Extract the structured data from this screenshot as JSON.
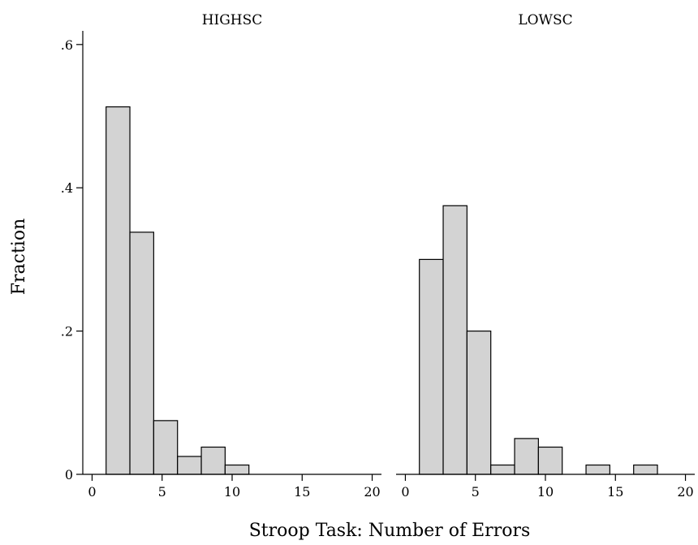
{
  "chart_data": {
    "type": "bar",
    "xlabel": "Stroop Task: Number of Errors",
    "ylabel": "Fraction",
    "bin_width": 1.7,
    "xlim": [
      -0.2,
      20.2
    ],
    "ylim": [
      0,
      0.61
    ],
    "x_ticks": [
      0,
      5,
      10,
      15,
      20
    ],
    "y_ticks": [
      {
        "value": 0,
        "label": "0"
      },
      {
        "value": 0.2,
        "label": ".2"
      },
      {
        "value": 0.4,
        "label": ".4"
      },
      {
        "value": 0.6,
        "label": ".6"
      }
    ],
    "bar_color": "#d3d3d3",
    "edge_color": "#000000",
    "panels": [
      {
        "title": "HIGHSC",
        "bars": [
          {
            "x_start": 1.0,
            "value": 0.513
          },
          {
            "x_start": 2.7,
            "value": 0.338
          },
          {
            "x_start": 4.4,
            "value": 0.075
          },
          {
            "x_start": 6.1,
            "value": 0.025
          },
          {
            "x_start": 7.8,
            "value": 0.038
          },
          {
            "x_start": 9.5,
            "value": 0.013
          }
        ]
      },
      {
        "title": "LOWSC",
        "bars": [
          {
            "x_start": 1.0,
            "value": 0.3
          },
          {
            "x_start": 2.7,
            "value": 0.375
          },
          {
            "x_start": 4.4,
            "value": 0.2
          },
          {
            "x_start": 6.1,
            "value": 0.013
          },
          {
            "x_start": 7.8,
            "value": 0.05
          },
          {
            "x_start": 9.5,
            "value": 0.038
          },
          {
            "x_start": 12.9,
            "value": 0.013
          },
          {
            "x_start": 16.3,
            "value": 0.013
          }
        ]
      }
    ]
  }
}
